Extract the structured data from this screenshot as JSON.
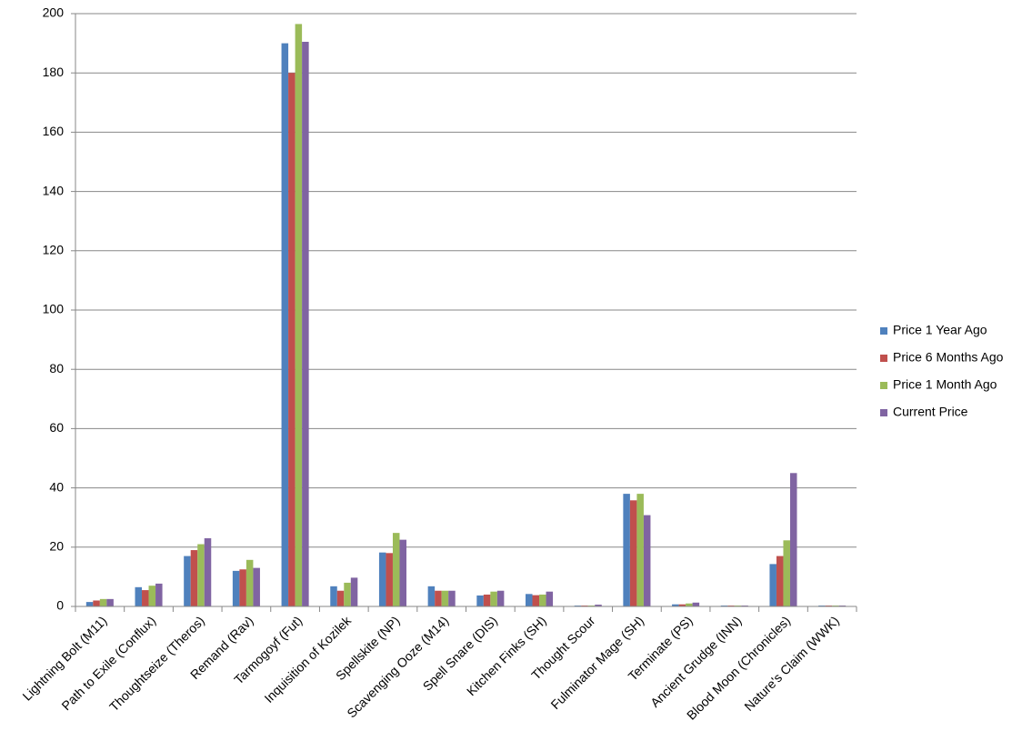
{
  "chart_data": {
    "type": "bar",
    "categories": [
      "Lightning Bolt (M11)",
      "Path to Exile (Conflux)",
      "Thoughtseize (Theros)",
      "Remand (Rav)",
      "Tarmogoyf (Fut)",
      "Inquisition of Kozilek",
      "Spellskite (NP)",
      "Scavenging Ooze (M14)",
      "Spell Snare (DIS)",
      "Kitchen Finks (SH)",
      "Thought Scour",
      "Fulminator Mage (SH)",
      "Terminate (PS)",
      "Ancient Grudge (INN)",
      "Blood Moon (Chronicles)",
      "Nature's Claim (WWK)"
    ],
    "series": [
      {
        "name": "Price 1 Year Ago",
        "color": "#4f81bd",
        "values": [
          1.5,
          6.5,
          17,
          12,
          190,
          6.8,
          18.2,
          6.8,
          3.7,
          4.2,
          0.3,
          38,
          0.7,
          0.3,
          14.3,
          0.3
        ]
      },
      {
        "name": "Price 6 Months Ago",
        "color": "#c0504d",
        "values": [
          2,
          5.5,
          19,
          12.5,
          180,
          5.3,
          18,
          5.3,
          4,
          3.8,
          0.3,
          35.8,
          0.7,
          0.3,
          17,
          0.3
        ]
      },
      {
        "name": "Price 1 Month Ago",
        "color": "#9bbb59",
        "values": [
          2.5,
          7,
          21,
          15.7,
          196.5,
          8,
          24.8,
          5.3,
          5,
          4,
          0.3,
          38,
          1,
          0.3,
          22.3,
          0.3
        ]
      },
      {
        "name": "Current Price",
        "color": "#8064a2",
        "values": [
          2.5,
          7.7,
          23,
          13,
          190.5,
          9.7,
          22.5,
          5.3,
          5.3,
          5,
          0.6,
          30.8,
          1.3,
          0.3,
          45,
          0.3
        ]
      }
    ],
    "ylim": [
      0,
      200
    ],
    "yticks": [
      0,
      20,
      40,
      60,
      80,
      100,
      120,
      140,
      160,
      180,
      200
    ],
    "grid": true,
    "legend": "right"
  }
}
